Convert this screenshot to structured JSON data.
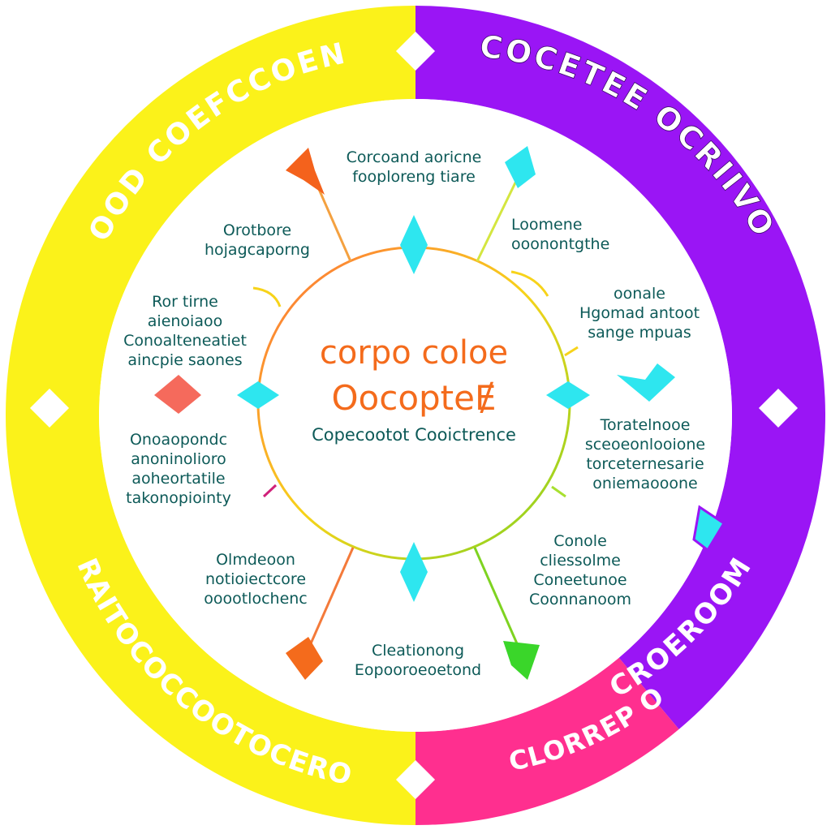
{
  "ring": {
    "segments": [
      {
        "name": "left-yellow",
        "color": "#fbf21a"
      },
      {
        "name": "top-right-purple",
        "color": "#9a15f5"
      },
      {
        "name": "bottom-right-pink",
        "color": "#ff2f8f"
      }
    ],
    "texts": {
      "top_left": "OOD COEFCCOEN",
      "top_right": "COCETEE OCRIIVOI",
      "bottom_left": "RAITOCOCCOOTOCEROTEE",
      "bottom_right_purple": "CROEROOM",
      "bottom_right_pink": "CLORREP OOERCCE"
    }
  },
  "center": {
    "title_line1": "corpo coloe",
    "title_line2": "OocopteɆ",
    "subtitle": "Copecootot Cooictrence"
  },
  "labels": {
    "top": [
      "Corcoand aoricne",
      "fooploreng tiare"
    ],
    "upper_left": [
      "Orotbore",
      "hojagcaporng"
    ],
    "left": [
      "Ror tirne",
      "aienoiaoo",
      "Conoalteneatiet",
      "aincpie saones"
    ],
    "lower_left": [
      "Onoaopondc",
      "anoninolioro",
      "aoheortatile",
      "takonopiointy"
    ],
    "bottom_left": [
      "Olmdeoon",
      "notioiectcore",
      "ooootlochenc"
    ],
    "bottom": [
      "Cleationong",
      "Eopooroeoetond"
    ],
    "upper_right": [
      "Loomene",
      "ooonontgthe"
    ],
    "right": [
      "oonale",
      "Hgomad antoot",
      "sange mpuas"
    ],
    "lower_right": [
      "Toratelnooe",
      "sceoeonlooione",
      "torceternesarie",
      "oniemaooone"
    ],
    "bottom_right": [
      "Conole",
      "cliessolme",
      "Coneetunoe",
      "Coonnanoom"
    ]
  }
}
